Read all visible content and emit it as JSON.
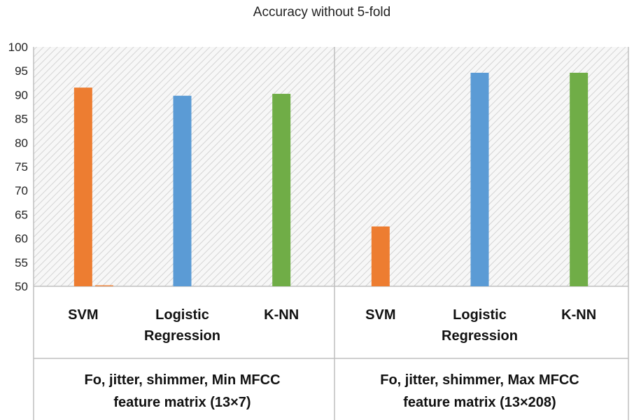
{
  "chart_data": {
    "type": "bar",
    "title": "Accuracy without 5-fold",
    "ylim": [
      50,
      100
    ],
    "yticks": [
      50,
      55,
      60,
      65,
      70,
      75,
      80,
      85,
      90,
      95,
      100
    ],
    "grid": false,
    "background_pattern": "diagonal-hatch",
    "groups": [
      {
        "label_lines": [
          "Fo, jitter, shimmer, Min MFCC",
          "feature matrix (13×7)"
        ],
        "bars": [
          {
            "name": "SVM",
            "label_lines": [
              "SVM"
            ],
            "value": 91.5,
            "color": "#ED7D31"
          },
          {
            "name": "SVM (near baseline)",
            "label_lines": [],
            "value": 50.2,
            "color": "#ED7D31"
          },
          {
            "name": "Logistic Regression",
            "label_lines": [
              "Logistic",
              "Regression"
            ],
            "value": 89.8,
            "color": "#5B9BD5"
          },
          {
            "name": "K-NN",
            "label_lines": [
              "K-NN"
            ],
            "value": 90.2,
            "color": "#70AD47"
          }
        ]
      },
      {
        "label_lines": [
          "Fo, jitter, shimmer, Max MFCC",
          "feature matrix (13×208)"
        ],
        "bars": [
          {
            "name": "SVM",
            "label_lines": [
              "SVM"
            ],
            "value": 62.5,
            "color": "#ED7D31"
          },
          {
            "name": "Logistic Regression",
            "label_lines": [
              "Logistic",
              "Regression"
            ],
            "value": 94.6,
            "color": "#5B9BD5"
          },
          {
            "name": "K-NN",
            "label_lines": [
              "K-NN"
            ],
            "value": 94.6,
            "color": "#70AD47"
          }
        ]
      }
    ]
  }
}
